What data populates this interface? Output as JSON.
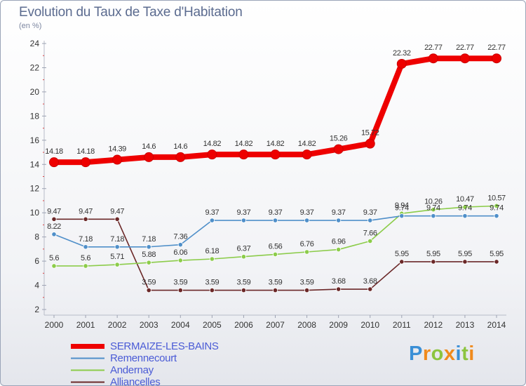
{
  "title": "Evolution du Taux de Taxe d'Habitation",
  "subtitle": "(en %)",
  "logo": {
    "letters": [
      "P",
      "r",
      "o",
      "x",
      "i",
      "t",
      "i"
    ],
    "colors": [
      "#3a8fd6",
      "#f08a1c",
      "#8cc43f",
      "#f08a1c",
      "#3a8fd6",
      "#8cc43f",
      "#f08a1c"
    ]
  },
  "chart_data": {
    "type": "line",
    "title": "Evolution du Taux de Taxe d'Habitation",
    "ylabel": "(en %)",
    "xlabel": "",
    "ylim": [
      2,
      24
    ],
    "yticks": [
      2,
      4,
      6,
      8,
      10,
      12,
      14,
      16,
      18,
      20,
      22,
      24
    ],
    "grid": false,
    "legend_position": "bottom-left",
    "x": [
      "2000",
      "2001",
      "2002",
      "2003",
      "2004",
      "2005",
      "2006",
      "2007",
      "2008",
      "2009",
      "2010",
      "2011",
      "2012",
      "2013",
      "2014"
    ],
    "series": [
      {
        "name": "SERMAIZE-LES-BAINS",
        "color": "#ee0000",
        "values": [
          14.18,
          14.18,
          14.39,
          14.6,
          14.6,
          14.82,
          14.82,
          14.82,
          14.82,
          15.26,
          15.72,
          22.32,
          22.77,
          22.77,
          22.77
        ],
        "labels": [
          "14.18",
          "14.18",
          "14.39",
          "14.6",
          "14.6",
          "14.82",
          "14.82",
          "14.82",
          "14.82",
          "15.26",
          "15.72",
          "22.32",
          "22.77",
          "22.77",
          "22.77"
        ]
      },
      {
        "name": "Remennecourt",
        "color": "#4f8fc9",
        "values": [
          8.22,
          7.18,
          7.18,
          7.18,
          7.36,
          9.37,
          9.37,
          9.37,
          9.37,
          9.37,
          9.37,
          9.74,
          9.74,
          9.74,
          9.74
        ],
        "labels": [
          "8.22",
          "7.18",
          "7.18",
          "7.18",
          "7.36",
          "9.37",
          "9.37",
          "9.37",
          "9.37",
          "9.37",
          "9.37",
          "9.74",
          "9.74",
          "9.74",
          "9.74"
        ]
      },
      {
        "name": "Andernay",
        "color": "#8ccc4a",
        "values": [
          5.6,
          5.6,
          5.71,
          5.88,
          6.06,
          6.18,
          6.37,
          6.56,
          6.76,
          6.96,
          7.66,
          9.94,
          10.26,
          10.47,
          10.57
        ],
        "labels": [
          "5.6",
          "5.6",
          "5.71",
          "5.88",
          "6.06",
          "6.18",
          "6.37",
          "6.56",
          "6.76",
          "6.96",
          "7.66",
          "9.94",
          "10.26",
          "10.47",
          "10.57"
        ]
      },
      {
        "name": "Alliancelles",
        "color": "#6b2828",
        "values": [
          9.47,
          9.47,
          9.47,
          3.59,
          3.59,
          3.59,
          3.59,
          3.59,
          3.59,
          3.68,
          3.68,
          5.95,
          5.95,
          5.95,
          5.95
        ],
        "labels": [
          "9.47",
          "9.47",
          "9.47",
          "3.59",
          "3.59",
          "3.59",
          "3.59",
          "3.59",
          "3.59",
          "3.68",
          "3.68",
          "5.95",
          "5.95",
          "5.95",
          "5.95"
        ]
      }
    ]
  }
}
